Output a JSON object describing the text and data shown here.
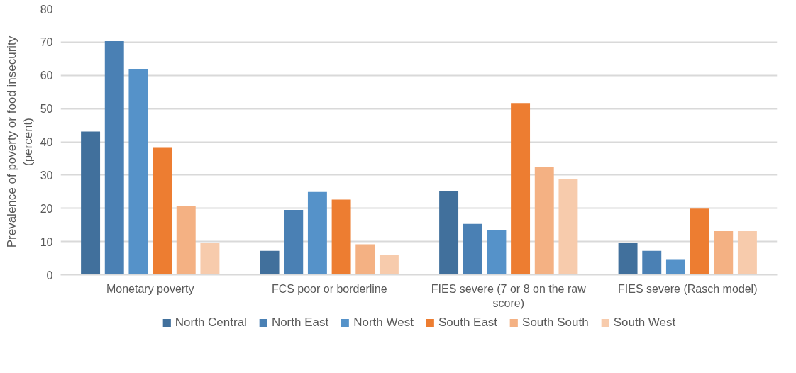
{
  "chart_data": {
    "type": "bar",
    "ylabel": "Prevalence of poverty or food insecurity (percent)",
    "categories": [
      "Monetary poverty",
      "FCS poor or borderline",
      "FIES severe (7 or 8 on the raw score)",
      "FIES severe (Rasch model)"
    ],
    "series": [
      {
        "name": "North Central",
        "color": "#41709c",
        "values": [
          43.1,
          7.2,
          25.1,
          9.5
        ]
      },
      {
        "name": "North East",
        "color": "#4a80b4",
        "values": [
          70.3,
          19.5,
          15.3,
          7.2
        ]
      },
      {
        "name": "North West",
        "color": "#5592c9",
        "values": [
          61.8,
          24.9,
          13.4,
          4.7
        ]
      },
      {
        "name": "South East",
        "color": "#ed7d31",
        "values": [
          38.2,
          22.6,
          51.7,
          19.9
        ]
      },
      {
        "name": "South South",
        "color": "#f4b183",
        "values": [
          20.7,
          9.2,
          32.4,
          13.1
        ]
      },
      {
        "name": "South West",
        "color": "#f7cbac",
        "values": [
          9.7,
          6.1,
          28.8,
          13.1
        ]
      }
    ],
    "ylim": [
      0,
      80
    ],
    "yticks": [
      0,
      10,
      20,
      30,
      40,
      50,
      60,
      70,
      80
    ],
    "grid": "y",
    "legend": "bottom"
  }
}
